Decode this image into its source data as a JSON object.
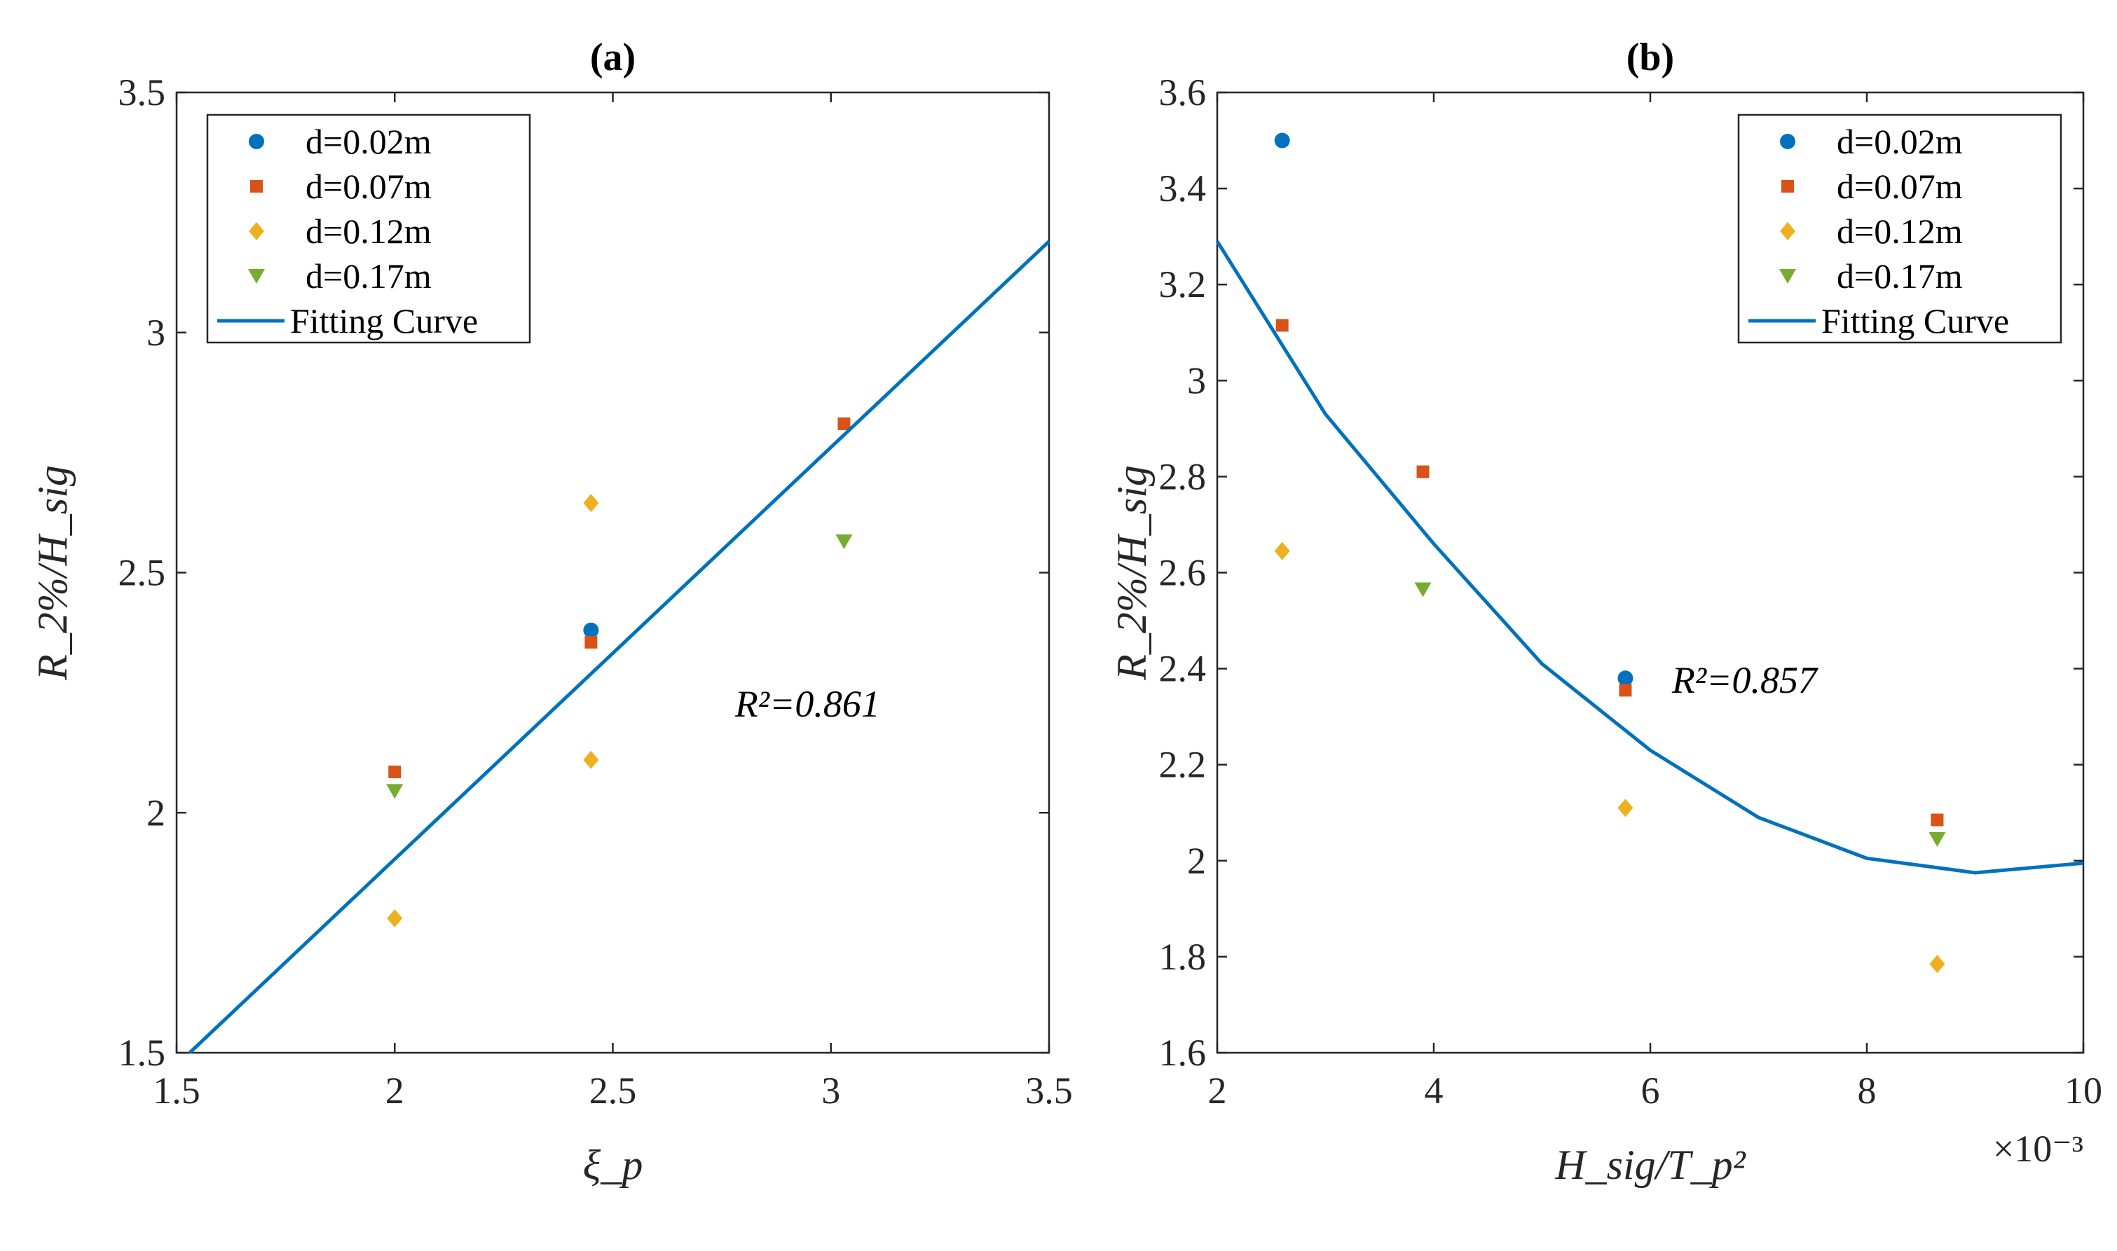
{
  "colors": {
    "d002": "#0072BD",
    "d007": "#D95319",
    "d012": "#EDB120",
    "d017": "#77AC30",
    "fit": "#0072BD",
    "axis": "#262626"
  },
  "chart_data": [
    {
      "type": "scatter",
      "title": "(a)",
      "xlabel": "ξ_p",
      "ylabel": "R_2%/H_sig",
      "xlim": [
        1.5,
        3.5
      ],
      "ylim": [
        1.5,
        3.5
      ],
      "xticks": [
        "1.5",
        "2",
        "2.5",
        "3",
        "3.5"
      ],
      "yticks": [
        "1.5",
        "2",
        "2.5",
        "3",
        "3.5"
      ],
      "legend_position": "top-left",
      "annotation": "R²=0.861",
      "series": [
        {
          "name": "d=0.02m",
          "marker": "circle",
          "points": [
            [
              2.45,
              2.38
            ]
          ]
        },
        {
          "name": "d=0.07m",
          "marker": "square",
          "points": [
            [
              2.0,
              2.085
            ],
            [
              2.45,
              2.355
            ],
            [
              3.03,
              2.81
            ]
          ]
        },
        {
          "name": "d=0.12m",
          "marker": "diamond",
          "points": [
            [
              2.0,
              1.78
            ],
            [
              2.45,
              2.645
            ],
            [
              2.45,
              2.11
            ]
          ]
        },
        {
          "name": "d=0.17m",
          "marker": "triangle-down",
          "points": [
            [
              2.0,
              2.045
            ],
            [
              3.03,
              2.565
            ]
          ]
        },
        {
          "name": "Fitting Curve",
          "marker": "line",
          "points": [
            [
              1.53,
              1.5
            ],
            [
              3.5,
              3.19
            ]
          ]
        }
      ]
    },
    {
      "type": "scatter",
      "title": "(b)",
      "xlabel": "H_sig/T_p²",
      "ylabel": "R_2%/H_sig",
      "xlim": [
        2,
        10
      ],
      "ylim": [
        1.6,
        3.6
      ],
      "x_multiplier": "×10⁻³",
      "xticks": [
        "2",
        "4",
        "6",
        "8",
        "10"
      ],
      "yticks": [
        "1.6",
        "1.8",
        "2",
        "2.2",
        "2.4",
        "2.6",
        "2.8",
        "3",
        "3.2",
        "3.4",
        "3.6"
      ],
      "legend_position": "top-right",
      "annotation": "R²=0.857",
      "series": [
        {
          "name": "d=0.02m",
          "marker": "circle",
          "points": [
            [
              2.6,
              3.5
            ],
            [
              5.77,
              2.38
            ]
          ]
        },
        {
          "name": "d=0.07m",
          "marker": "square",
          "points": [
            [
              2.6,
              3.115
            ],
            [
              3.9,
              2.81
            ],
            [
              5.77,
              2.355
            ],
            [
              8.65,
              2.085
            ]
          ]
        },
        {
          "name": "d=0.12m",
          "marker": "diamond",
          "points": [
            [
              2.6,
              2.645
            ],
            [
              5.77,
              2.11
            ],
            [
              8.65,
              1.785
            ]
          ]
        },
        {
          "name": "d=0.17m",
          "marker": "triangle-down",
          "points": [
            [
              3.9,
              2.565
            ],
            [
              8.65,
              2.045
            ]
          ]
        },
        {
          "name": "Fitting Curve",
          "marker": "line",
          "points": [
            [
              2,
              3.29
            ],
            [
              3,
              2.93
            ],
            [
              4,
              2.66
            ],
            [
              5,
              2.41
            ],
            [
              6,
              2.23
            ],
            [
              7,
              2.09
            ],
            [
              8,
              2.005
            ],
            [
              9,
              1.975
            ],
            [
              10,
              1.995
            ]
          ]
        }
      ]
    }
  ]
}
